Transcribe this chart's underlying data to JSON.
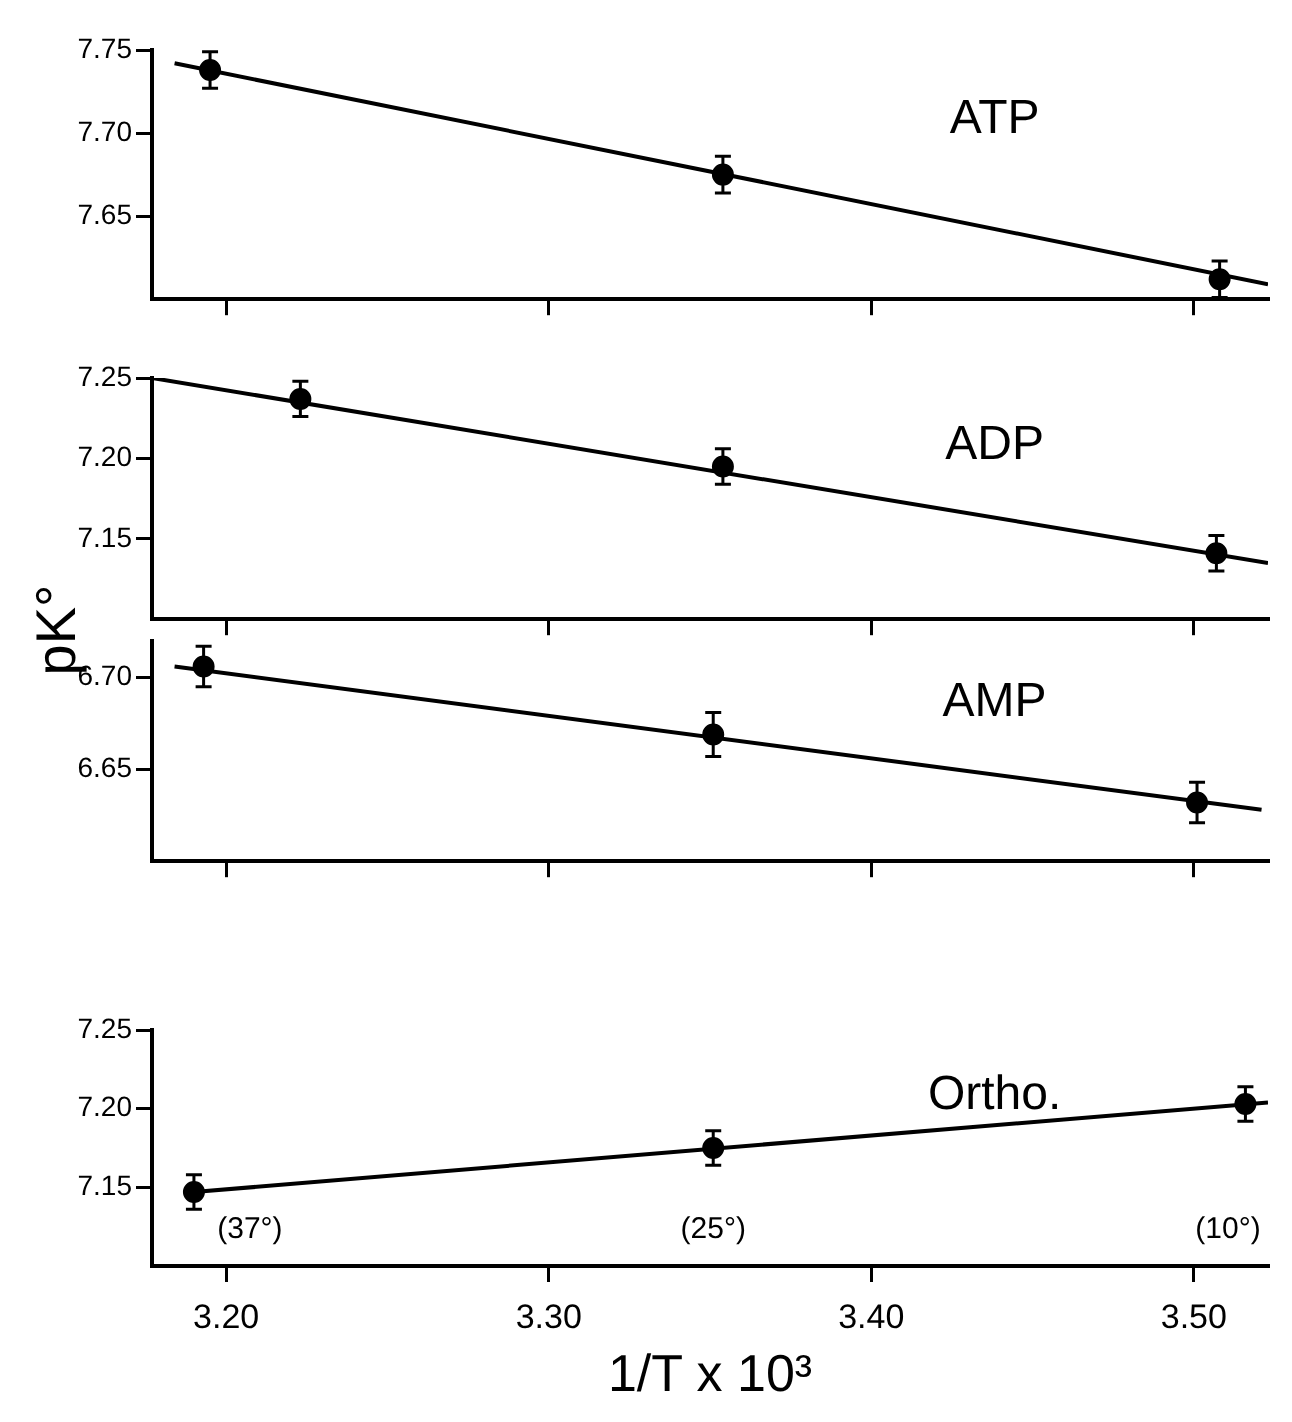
{
  "chart_data": [
    {
      "type": "scatter",
      "title": "ATP",
      "x": [
        3.195,
        3.354,
        3.508
      ],
      "xlim": [
        3.177,
        3.523
      ],
      "ylim": [
        7.6,
        7.75
      ],
      "tick_labels": "y",
      "xticks": [
        {
          "value": 3.2,
          "label": null
        },
        {
          "value": 3.3,
          "label": null
        },
        {
          "value": 3.4,
          "label": null
        },
        {
          "value": 3.5,
          "label": null
        }
      ],
      "yticks": [
        {
          "value": 7.65,
          "label": "7.65"
        },
        {
          "value": 7.7,
          "label": "7.70"
        },
        {
          "value": 7.75,
          "label": "7.75"
        }
      ],
      "series": [
        {
          "color": "#000000",
          "marker": "circle",
          "values": [
            7.738,
            7.675,
            7.612
          ],
          "errors": [
            0.011,
            0.011,
            0.011
          ]
        },
        {
          "type": "line",
          "color": "#000000",
          "x": [
            3.184,
            3.523
          ],
          "values": [
            7.742,
            7.609
          ]
        }
      ]
    },
    {
      "type": "scatter",
      "title": "ADP",
      "ylabel": "pK°",
      "x": [
        3.223,
        3.354,
        3.507
      ],
      "xlim": [
        3.177,
        3.523
      ],
      "ylim": [
        7.1,
        7.25
      ],
      "tick_labels": "y",
      "xticks": [
        {
          "value": 3.2,
          "label": null
        },
        {
          "value": 3.3,
          "label": null
        },
        {
          "value": 3.4,
          "label": null
        },
        {
          "value": 3.5,
          "label": null
        }
      ],
      "yticks": [
        {
          "value": 7.15,
          "label": "7.15"
        },
        {
          "value": 7.2,
          "label": "7.20"
        },
        {
          "value": 7.25,
          "label": "7.25"
        }
      ],
      "series": [
        {
          "color": "#000000",
          "marker": "circle",
          "values": [
            7.237,
            7.195,
            7.141
          ],
          "errors": [
            0.011,
            0.011,
            0.011
          ]
        },
        {
          "type": "line",
          "color": "#000000",
          "x": [
            3.177,
            3.523
          ],
          "values": [
            7.25,
            7.135
          ]
        }
      ]
    },
    {
      "type": "scatter",
      "title": "AMP",
      "x": [
        3.193,
        3.351,
        3.501
      ],
      "xlim": [
        3.177,
        3.523
      ],
      "ylim": [
        6.6,
        6.72
      ],
      "tick_labels": "y",
      "xticks": [
        {
          "value": 3.2,
          "label": null
        },
        {
          "value": 3.3,
          "label": null
        },
        {
          "value": 3.4,
          "label": null
        },
        {
          "value": 3.5,
          "label": null
        }
      ],
      "yticks": [
        {
          "value": 6.65,
          "label": "6.65"
        },
        {
          "value": 6.7,
          "label": "6.70"
        }
      ],
      "series": [
        {
          "color": "#000000",
          "marker": "circle",
          "values": [
            6.706,
            6.669,
            6.632
          ],
          "errors": [
            0.011,
            0.012,
            0.011
          ]
        },
        {
          "type": "line",
          "color": "#000000",
          "x": [
            3.184,
            3.521
          ],
          "values": [
            6.706,
            6.628
          ]
        }
      ]
    },
    {
      "type": "scatter",
      "title": "Ortho.",
      "xlabel": "1/T x 10³",
      "x": [
        3.19,
        3.351,
        3.516
      ],
      "xlim": [
        3.177,
        3.523
      ],
      "ylim": [
        7.1,
        7.25
      ],
      "xticks": [
        {
          "value": 3.2,
          "label": "3.20"
        },
        {
          "value": 3.3,
          "label": "3.30"
        },
        {
          "value": 3.4,
          "label": "3.40"
        },
        {
          "value": 3.5,
          "label": "3.50"
        }
      ],
      "yticks": [
        {
          "value": 7.15,
          "label": "7.15"
        },
        {
          "value": 7.2,
          "label": "7.20"
        },
        {
          "value": 7.25,
          "label": "7.25"
        }
      ],
      "annotations": [
        "(37°)",
        "(25°)",
        "(10°)"
      ],
      "series": [
        {
          "color": "#000000",
          "marker": "circle",
          "values": [
            7.147,
            7.175,
            7.203
          ],
          "errors": [
            0.011,
            0.011,
            0.011
          ]
        },
        {
          "type": "line",
          "color": "#000000",
          "x": [
            3.19,
            3.523
          ],
          "values": [
            7.147,
            7.204
          ]
        }
      ]
    }
  ]
}
